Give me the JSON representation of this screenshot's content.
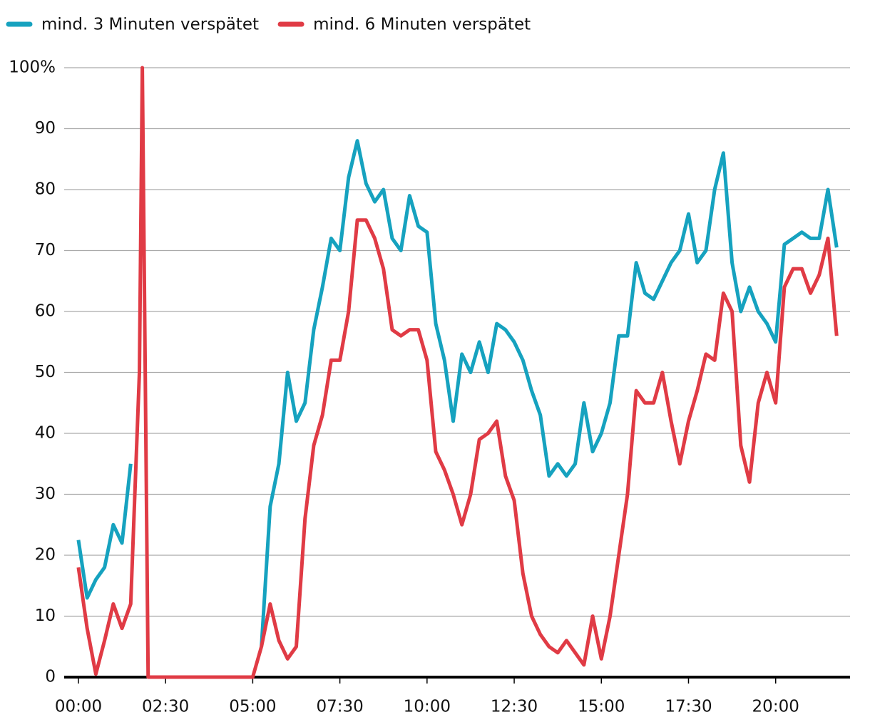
{
  "chart_data": {
    "type": "line",
    "x": [
      0,
      15,
      30,
      45,
      60,
      75,
      90,
      105,
      110,
      120,
      135,
      150,
      165,
      180,
      195,
      210,
      225,
      240,
      255,
      270,
      285,
      300,
      315,
      330,
      345,
      360,
      375,
      390,
      405,
      420,
      435,
      450,
      465,
      480,
      495,
      510,
      525,
      540,
      555,
      570,
      585,
      600,
      615,
      630,
      645,
      660,
      675,
      690,
      705,
      720,
      735,
      750,
      765,
      780,
      795,
      810,
      825,
      840,
      855,
      870,
      885,
      900,
      915,
      930,
      945,
      960,
      975,
      990,
      1005,
      1020,
      1035,
      1050,
      1065,
      1080,
      1095,
      1110,
      1125,
      1140,
      1155,
      1170,
      1185,
      1200,
      1215,
      1230,
      1245,
      1260,
      1275,
      1290,
      1305
    ],
    "series": [
      {
        "name": "mind. 3 Minuten verspätet",
        "color": "#16a2bf",
        "values": [
          22.5,
          13,
          16,
          18,
          25,
          22,
          35,
          null,
          null,
          null,
          null,
          null,
          null,
          null,
          null,
          null,
          null,
          null,
          null,
          null,
          null,
          null,
          5,
          28,
          35,
          50,
          42,
          45,
          57,
          64,
          72,
          70,
          82,
          88,
          81,
          78,
          80,
          72,
          70,
          79,
          74,
          73,
          58,
          52,
          42,
          53,
          50,
          55,
          50,
          58,
          57,
          55,
          52,
          47,
          43,
          33,
          35,
          33,
          35,
          45,
          37,
          40,
          45,
          56,
          56,
          68,
          63,
          62,
          65,
          68,
          70,
          76,
          68,
          70,
          80,
          86,
          68,
          60,
          64,
          60,
          58,
          55,
          71,
          72,
          73,
          72,
          72,
          80,
          70.5
        ]
      },
      {
        "name": "mind. 6 Minuten verspätet",
        "color": "#e03b45",
        "values": [
          18,
          8,
          0.5,
          6,
          12,
          8,
          12,
          50,
          100,
          0,
          0,
          0,
          0,
          0,
          0,
          0,
          0,
          0,
          0,
          0,
          0,
          0,
          5,
          12,
          6,
          3,
          5,
          26,
          38,
          43,
          52,
          52,
          60,
          75,
          75,
          72,
          67,
          57,
          56,
          57,
          57,
          52,
          37,
          34,
          30,
          25,
          30,
          39,
          40,
          42,
          33,
          29,
          17,
          10,
          7,
          5,
          4,
          6,
          4,
          2,
          10,
          3,
          10,
          20,
          30,
          47,
          45,
          45,
          50,
          42,
          35,
          42,
          47,
          53,
          52,
          63,
          60,
          38,
          32,
          45,
          50,
          45,
          64,
          67,
          67,
          63,
          66,
          72,
          56
        ]
      }
    ],
    "xlim": [
      -24.5,
      1328
    ],
    "xticks": [
      {
        "value": 0,
        "label": "00:00"
      },
      {
        "value": 150,
        "label": "02:30"
      },
      {
        "value": 300,
        "label": "05:00"
      },
      {
        "value": 450,
        "label": "07:30"
      },
      {
        "value": 600,
        "label": "10:00"
      },
      {
        "value": 750,
        "label": "12:30"
      },
      {
        "value": 900,
        "label": "15:00"
      },
      {
        "value": 1050,
        "label": "17:30"
      },
      {
        "value": 1200,
        "label": "20:00"
      }
    ],
    "ylim": [
      0,
      100
    ],
    "yticks": [
      0,
      10,
      20,
      30,
      40,
      50,
      60,
      70,
      80,
      90,
      {
        "value": 100,
        "label": "100%"
      }
    ],
    "grid": true,
    "legend": "top-left"
  }
}
